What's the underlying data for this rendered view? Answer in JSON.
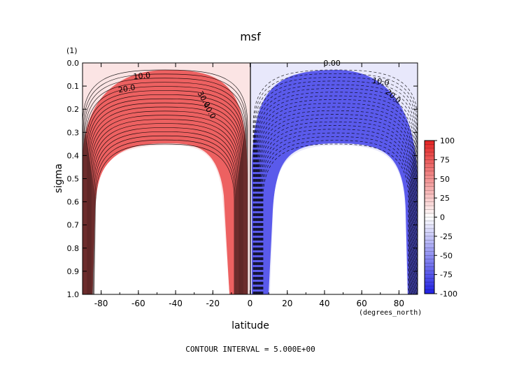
{
  "chart_data": {
    "type": "heatmap",
    "title": "msf",
    "xlabel": "latitude",
    "xunits": "(degrees_north)",
    "ylabel": "sigma",
    "yunits": "(1)",
    "footer": "CONTOUR INTERVAL = 5.000E+00",
    "xlim": [
      -90,
      90
    ],
    "ylim": [
      0.0,
      1.0
    ],
    "y_inverted": true,
    "x_ticks": [
      -80,
      -60,
      -40,
      -20,
      0,
      20,
      40,
      60,
      80
    ],
    "x_tick_labels": [
      "-80",
      "-60",
      "-40",
      "-20",
      "0",
      "20",
      "40",
      "60",
      "80"
    ],
    "y_ticks": [
      0.0,
      0.1,
      0.2,
      0.3,
      0.4,
      0.5,
      0.6,
      0.7,
      0.8,
      0.9,
      1.0
    ],
    "y_tick_labels": [
      "0.0",
      "0.1",
      "0.2",
      "0.3",
      "0.4",
      "0.5",
      "0.6",
      "0.7",
      "0.8",
      "0.9",
      "1.0"
    ],
    "contour_interval": 5,
    "colorbar": {
      "range": [
        -100,
        100
      ],
      "ticks": [
        100,
        75,
        50,
        25,
        0,
        -25,
        -50,
        -75,
        -100
      ],
      "tick_labels": [
        "100",
        "75",
        "50",
        "25",
        "0",
        "-25",
        "-50",
        "-75",
        "-100"
      ],
      "colors": {
        "max": "#e32222",
        "zero": "#ffffff",
        "min": "#1f1fe3"
      }
    },
    "contour_labels": [
      {
        "text": "10.0",
        "lat": -58,
        "sigma": 0.055,
        "angle": -5
      },
      {
        "text": "20.0",
        "lat": -66,
        "sigma": 0.11,
        "angle": -10
      },
      {
        "text": "30.0",
        "lat": -26,
        "sigma": 0.15,
        "angle": 60
      },
      {
        "text": "40.0",
        "lat": -23,
        "sigma": 0.2,
        "angle": 60
      },
      {
        "text": "0.00",
        "lat": 44,
        "sigma": 0.0,
        "angle": 0
      },
      {
        "text": "10.0",
        "lat": 70,
        "sigma": 0.08,
        "angle": 10
      },
      {
        "text": "20.0",
        "lat": 76,
        "sigma": 0.14,
        "angle": 40
      }
    ],
    "circulation_cells": [
      {
        "sign": "positive",
        "max_value": 100,
        "lat_range": [
          -90,
          0
        ]
      },
      {
        "sign": "negative",
        "min_value": -100,
        "lat_range": [
          0,
          90
        ]
      }
    ]
  }
}
